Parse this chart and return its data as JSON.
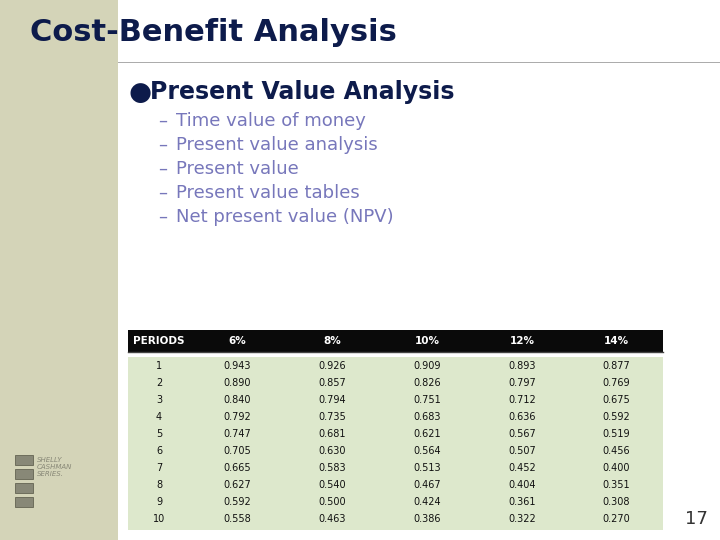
{
  "title": "Cost-Benefit Analysis",
  "title_color": "#0d1b4b",
  "title_fontsize": 22,
  "bullet_text": "Present Value Analysis",
  "bullet_color": "#0d1b4b",
  "bullet_fontsize": 17,
  "sub_items": [
    "Time value of money",
    "Present value analysis",
    "Present value",
    "Present value tables",
    "Net present value (NPV)"
  ],
  "sub_color": "#7777bb",
  "sub_fontsize": 13,
  "table_headers": [
    "PERIODS",
    "6%",
    "8%",
    "10%",
    "12%",
    "14%"
  ],
  "table_data": [
    [
      1,
      0.943,
      0.926,
      0.909,
      0.893,
      0.877
    ],
    [
      2,
      0.89,
      0.857,
      0.826,
      0.797,
      0.769
    ],
    [
      3,
      0.84,
      0.794,
      0.751,
      0.712,
      0.675
    ],
    [
      4,
      0.792,
      0.735,
      0.683,
      0.636,
      0.592
    ],
    [
      5,
      0.747,
      0.681,
      0.621,
      0.567,
      0.519
    ],
    [
      6,
      0.705,
      0.63,
      0.564,
      0.507,
      0.456
    ],
    [
      7,
      0.665,
      0.583,
      0.513,
      0.452,
      0.4
    ],
    [
      8,
      0.627,
      0.54,
      0.467,
      0.404,
      0.351
    ],
    [
      9,
      0.592,
      0.5,
      0.424,
      0.361,
      0.308
    ],
    [
      10,
      0.558,
      0.463,
      0.386,
      0.322,
      0.27
    ]
  ],
  "header_bg": "#0a0a0a",
  "header_fg": "#ffffff",
  "table_bg": "#dde8cc",
  "table_fg": "#111111",
  "page_number": "17",
  "left_bar_color": "#d4d4b8",
  "bg_color": "#ffffff",
  "logo_color": "#888877"
}
